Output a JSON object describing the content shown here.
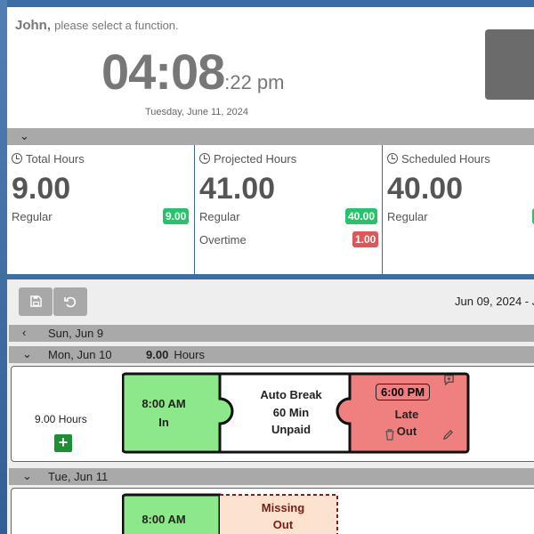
{
  "header": {
    "user_name": "John,",
    "prompt": "please select a function.",
    "time_hm": "04:08",
    "time_sec": ":22 pm",
    "date": "Tuesday, June 11, 2024"
  },
  "summary": [
    {
      "title": "Total Hours",
      "value": "9.00",
      "rows": [
        {
          "label": "Regular",
          "badge": "9.00",
          "color": "green"
        }
      ]
    },
    {
      "title": "Projected Hours",
      "value": "41.00",
      "rows": [
        {
          "label": "Regular",
          "badge": "40.00",
          "color": "green"
        },
        {
          "label": "Overtime",
          "badge": "1.00",
          "color": "red"
        }
      ]
    },
    {
      "title": "Scheduled Hours",
      "value": "40.00",
      "rows": [
        {
          "label": "Regular",
          "badge": "",
          "color": "green"
        }
      ]
    }
  ],
  "week": {
    "range": "Jun 09, 2024 - J",
    "save_icon": "save-icon",
    "undo_icon": "undo-icon",
    "days": [
      {
        "label": "Sun, Jun 9"
      },
      {
        "label": "Mon, Jun 10",
        "hours": "9.00",
        "hours_unit": "Hours"
      },
      {
        "label": "Tue, Jun 11"
      }
    ],
    "mon": {
      "total": "9.00 Hours",
      "in_time": "8:00 AM",
      "in_label": "In",
      "break_l1": "Auto Break",
      "break_l2": "60 Min",
      "break_l3": "Unpaid",
      "out_time": "6:00 PM",
      "out_l1": "Late",
      "out_l2": "Out"
    },
    "tue": {
      "in_time": "8:00 AM",
      "missing_l1": "Missing",
      "missing_l2": "Out"
    }
  },
  "colors": {
    "in_green": "#8de88a",
    "late_red": "#f08080",
    "missing_bg": "#fbe3cf",
    "missing_border": "#8b1a1a"
  }
}
